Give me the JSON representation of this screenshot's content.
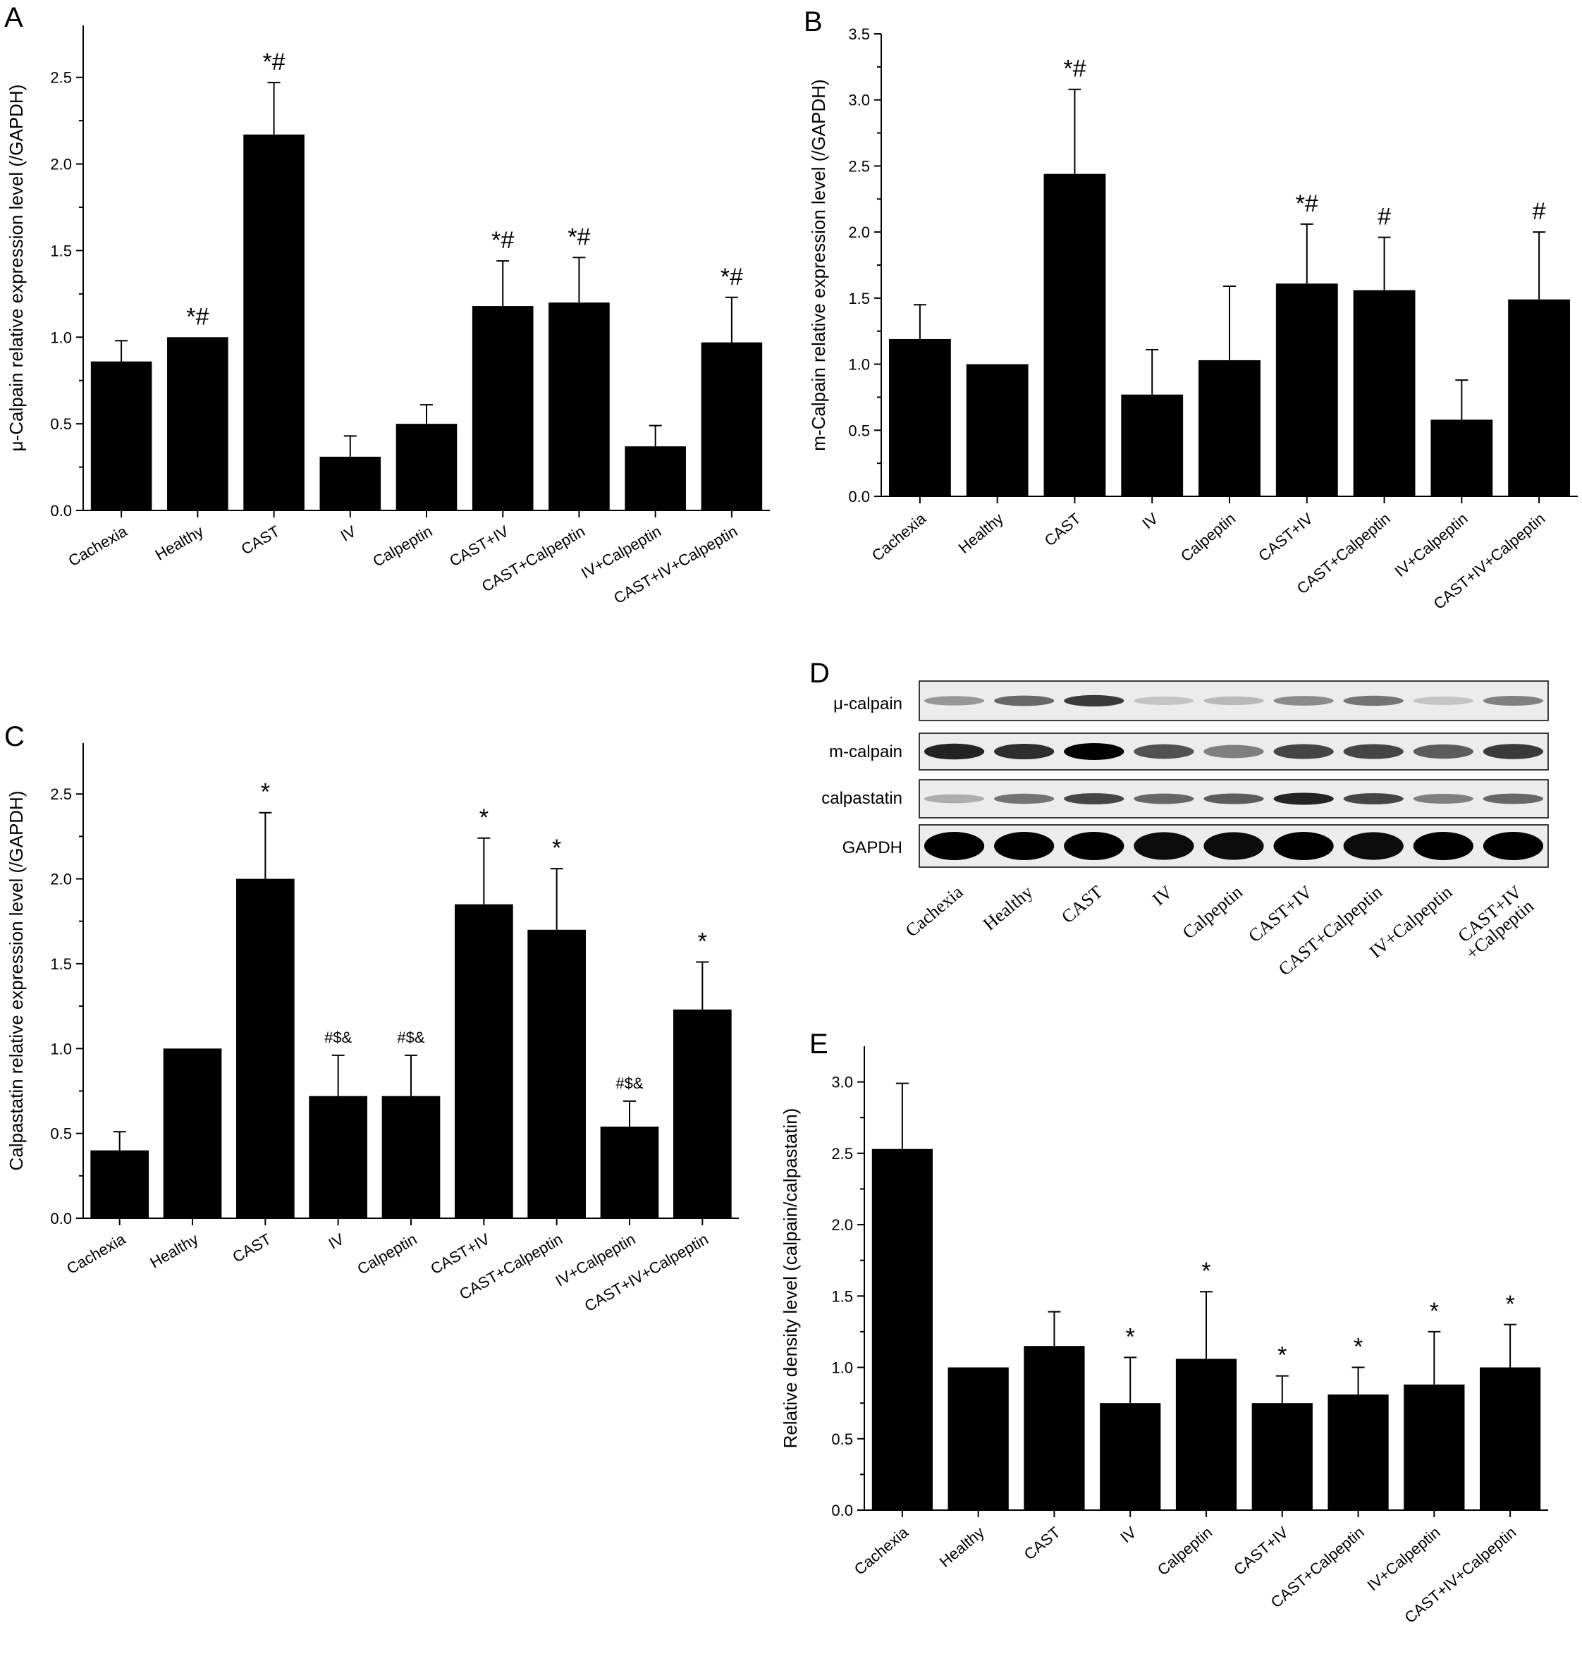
{
  "chart_data": [
    {
      "panel": "A",
      "type": "bar",
      "categories": [
        "Cachexia",
        "Healthy",
        "CAST",
        "IV",
        "Calpeptin",
        "CAST+IV",
        "CAST+Calpeptin",
        "IV+Calpeptin",
        "CAST+IV+Calpeptin"
      ],
      "values": [
        0.86,
        1.0,
        2.17,
        0.31,
        0.5,
        1.18,
        1.2,
        0.37,
        0.97
      ],
      "errors": [
        0.12,
        0.0,
        0.3,
        0.12,
        0.11,
        0.26,
        0.26,
        0.12,
        0.26
      ],
      "annotations": [
        "",
        "*#",
        "*#",
        "",
        "",
        "*#",
        "*#",
        "",
        "*#"
      ],
      "ylabel": "μ-Calpain relative expression level (/GAPDH)",
      "xlabel": "",
      "ylim": [
        0,
        2.8
      ],
      "yticks": [
        0.0,
        0.5,
        1.0,
        1.5,
        2.0,
        2.5
      ],
      "ytick_labels": [
        "0.0",
        "0.5",
        "1.0",
        "1.5",
        "2.0",
        "2.5"
      ]
    },
    {
      "panel": "B",
      "type": "bar",
      "categories": [
        "Cachexia",
        "Healthy",
        "CAST",
        "IV",
        "Calpeptin",
        "CAST+IV",
        "CAST+Calpeptin",
        "IV+Calpeptin",
        "CAST+IV+Calpeptin"
      ],
      "values": [
        1.19,
        1.0,
        2.44,
        0.77,
        1.03,
        1.61,
        1.56,
        0.58,
        1.49
      ],
      "errors": [
        0.26,
        0.0,
        0.64,
        0.34,
        0.56,
        0.45,
        0.4,
        0.3,
        0.51
      ],
      "annotations": [
        "",
        "",
        "*#",
        "",
        "",
        "*#",
        "#",
        "",
        "#"
      ],
      "ylabel": "m-Calpain relative expression level (/GAPDH)",
      "xlabel": "",
      "ylim": [
        0,
        3.5
      ],
      "yticks": [
        0.0,
        0.5,
        1.0,
        1.5,
        2.0,
        2.5,
        3.0,
        3.5
      ],
      "ytick_labels": [
        "0.0",
        "0.5",
        "1.0",
        "1.5",
        "2.0",
        "2.5",
        "3.0",
        "3.5"
      ]
    },
    {
      "panel": "C",
      "type": "bar",
      "categories": [
        "Cachexia",
        "Healthy",
        "CAST",
        "IV",
        "Calpeptin",
        "CAST+IV",
        "CAST+Calpeptin",
        "IV+Calpeptin",
        "CAST+IV+Calpeptin"
      ],
      "values": [
        0.4,
        1.0,
        2.0,
        0.72,
        0.72,
        1.85,
        1.7,
        0.54,
        1.23
      ],
      "errors": [
        0.11,
        0.0,
        0.39,
        0.24,
        0.24,
        0.39,
        0.36,
        0.15,
        0.28
      ],
      "annotations": [
        "",
        "",
        "*",
        "#$&",
        "#$&",
        "*",
        "*",
        "#$&",
        "*"
      ],
      "ylabel": "Calpastatin relative expression level (/GAPDH)",
      "xlabel": "",
      "ylim": [
        0,
        2.8
      ],
      "yticks": [
        0.0,
        0.5,
        1.0,
        1.5,
        2.0,
        2.5
      ],
      "ytick_labels": [
        "0.0",
        "0.5",
        "1.0",
        "1.5",
        "2.0",
        "2.5"
      ]
    },
    {
      "panel": "E",
      "type": "bar",
      "categories": [
        "Cachexia",
        "Healthy",
        "CAST",
        "IV",
        "Calpeptin",
        "CAST+IV",
        "CAST+Calpeptin",
        "IV+Calpeptin",
        "CAST+IV+Calpeptin"
      ],
      "values": [
        2.53,
        1.0,
        1.15,
        0.75,
        1.06,
        0.75,
        0.81,
        0.88,
        1.0
      ],
      "errors": [
        0.46,
        0.0,
        0.24,
        0.32,
        0.47,
        0.19,
        0.19,
        0.37,
        0.3
      ],
      "annotations": [
        "",
        "",
        "",
        "*",
        "*",
        "*",
        "*",
        "*",
        "*"
      ],
      "ylabel": "Relative density level (calpain/calpastatin)",
      "xlabel": "",
      "ylim": [
        0,
        3.25
      ],
      "yticks": [
        0.0,
        0.5,
        1.0,
        1.5,
        2.0,
        2.5,
        3.0
      ],
      "ytick_labels": [
        "0.0",
        "0.5",
        "1.0",
        "1.5",
        "2.0",
        "2.5",
        "3.0"
      ]
    }
  ],
  "panel_letters": {
    "a": "A",
    "b": "B",
    "c": "C",
    "d": "D",
    "e": "E"
  },
  "blot": {
    "rows": [
      "μ-calpain",
      "m-calpain",
      "calpastatin",
      "GAPDH"
    ],
    "lanes": [
      "Cachexia",
      "Healthy",
      "CAST",
      "IV",
      "Calpeptin",
      "CAST+IV",
      "CAST+Calpeptin",
      "IV+Calpeptin",
      "CAST+IV\n+Calpeptin"
    ],
    "band_intensity": [
      [
        0.35,
        0.55,
        0.75,
        0.15,
        0.2,
        0.4,
        0.5,
        0.15,
        0.45
      ],
      [
        0.85,
        0.8,
        1.0,
        0.65,
        0.45,
        0.7,
        0.7,
        0.6,
        0.75
      ],
      [
        0.25,
        0.5,
        0.7,
        0.55,
        0.6,
        0.85,
        0.7,
        0.45,
        0.55
      ],
      [
        1.0,
        1.0,
        1.0,
        0.95,
        0.95,
        1.0,
        0.95,
        1.0,
        1.0
      ]
    ]
  },
  "colors": {
    "bar": "#000000",
    "axis": "#000000",
    "background": "#ffffff",
    "blot_bg": "#ececec"
  }
}
